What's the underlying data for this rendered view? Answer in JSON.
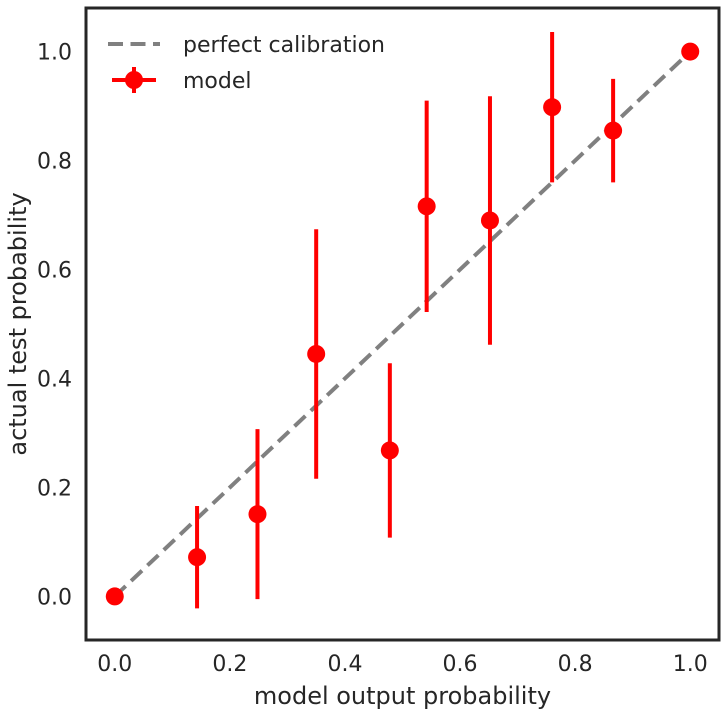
{
  "chart_data": {
    "type": "scatter",
    "title": "",
    "xlabel": "model output probability",
    "ylabel": "actual test probability",
    "xlim": [
      -0.05,
      1.05
    ],
    "ylim": [
      -0.08,
      1.08
    ],
    "x_ticks": [
      0.0,
      0.2,
      0.4,
      0.6,
      0.8,
      1.0
    ],
    "y_ticks": [
      0.0,
      0.2,
      0.4,
      0.6,
      0.8,
      1.0
    ],
    "x_tick_labels": [
      "0.0",
      "0.2",
      "0.4",
      "0.6",
      "0.8",
      "1.0"
    ],
    "y_tick_labels": [
      "0.0",
      "0.2",
      "0.4",
      "0.6",
      "0.8",
      "1.0"
    ],
    "grid": false,
    "legend_position": "top-left",
    "series": [
      {
        "name": "perfect calibration",
        "kind": "dashed-line",
        "color": "#808080",
        "x": [
          0.0,
          1.0
        ],
        "y": [
          0.0,
          1.0
        ]
      },
      {
        "name": "model",
        "kind": "errorbar",
        "color": "#ff0000",
        "points": [
          {
            "x": 0.0,
            "y": 0.0,
            "lower": 0.0,
            "upper": 0.0
          },
          {
            "x": 0.143,
            "y": 0.072,
            "lower": -0.022,
            "upper": 0.166
          },
          {
            "x": 0.248,
            "y": 0.151,
            "lower": -0.005,
            "upper": 0.307
          },
          {
            "x": 0.35,
            "y": 0.445,
            "lower": 0.216,
            "upper": 0.674
          },
          {
            "x": 0.478,
            "y": 0.268,
            "lower": 0.108,
            "upper": 0.428
          },
          {
            "x": 0.542,
            "y": 0.716,
            "lower": 0.522,
            "upper": 0.91
          },
          {
            "x": 0.652,
            "y": 0.69,
            "lower": 0.462,
            "upper": 0.918
          },
          {
            "x": 0.76,
            "y": 0.898,
            "lower": 0.76,
            "upper": 1.036
          },
          {
            "x": 0.866,
            "y": 0.855,
            "lower": 0.76,
            "upper": 0.95
          },
          {
            "x": 1.0,
            "y": 1.0,
            "lower": 1.0,
            "upper": 1.0
          }
        ]
      }
    ]
  }
}
